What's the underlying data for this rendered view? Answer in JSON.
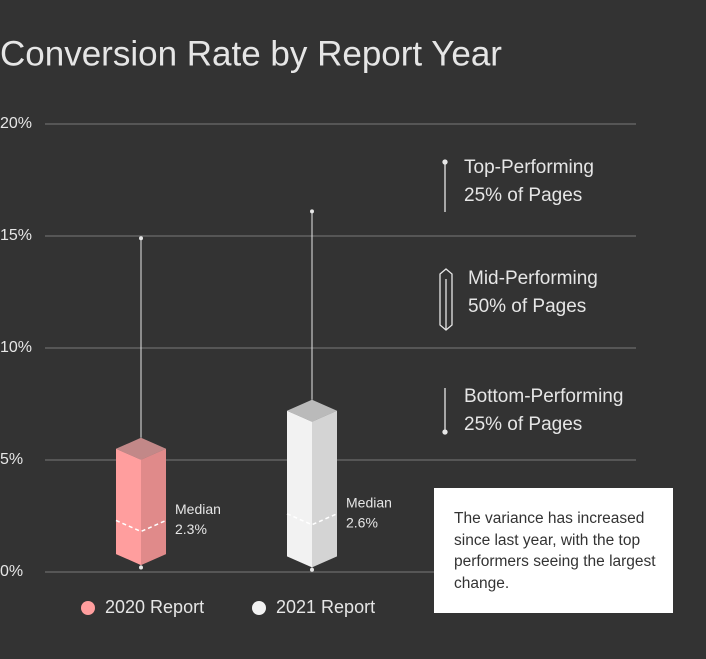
{
  "chart_data": {
    "type": "box",
    "title": "Conversion Rate by Report Year",
    "ylim": [
      0,
      20
    ],
    "yticks": [
      {
        "value": 0,
        "label": "0%"
      },
      {
        "value": 5,
        "label": "5%"
      },
      {
        "value": 10,
        "label": "10%"
      },
      {
        "value": 15,
        "label": "15%"
      },
      {
        "value": 20,
        "label": "20%"
      }
    ],
    "grid": true,
    "median_text": "Median",
    "series": [
      {
        "name": "2020 Report",
        "color": "#ff9e9e",
        "min": 0.2,
        "q1": 0.8,
        "median": 2.3,
        "q3": 5.5,
        "max": 14.9,
        "median_label": "2.3%"
      },
      {
        "name": "2021 Report",
        "color": "#f2f2f2",
        "min": 0.1,
        "q1": 0.7,
        "median": 2.6,
        "q3": 7.2,
        "max": 16.1,
        "median_label": "2.6%"
      }
    ],
    "key": [
      {
        "title": "Top-Performing",
        "subtitle": "25% of Pages"
      },
      {
        "title": "Mid-Performing",
        "subtitle": "50% of Pages"
      },
      {
        "title": "Bottom-Performing",
        "subtitle": "25% of Pages"
      }
    ],
    "annotation": "The variance has increased since last year, with the top performers seeing the largest change.",
    "legend_position": "bottom-left"
  }
}
